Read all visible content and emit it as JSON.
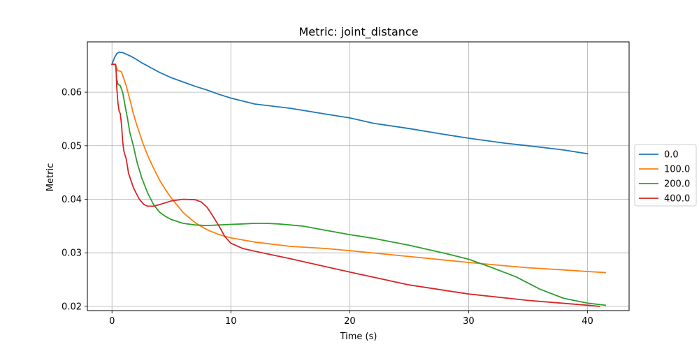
{
  "chart_data": {
    "type": "line",
    "title": "Metric: joint_distance",
    "xlabel": "Time (s)",
    "ylabel": "Metric",
    "xlim": [
      -2.07,
      43.5
    ],
    "ylim": [
      0.0192,
      0.0694
    ],
    "xticks": [
      0,
      10,
      20,
      30,
      40
    ],
    "xtick_labels": [
      "0",
      "10",
      "20",
      "30",
      "40"
    ],
    "yticks": [
      0.02,
      0.03,
      0.04,
      0.05,
      0.06
    ],
    "ytick_labels": [
      "0.02",
      "0.03",
      "0.04",
      "0.05",
      "0.06"
    ],
    "grid": true,
    "legend": "right, outside plot",
    "series": [
      {
        "name": "0.0",
        "color": "#1f77b4",
        "x": [
          0,
          0.2,
          0.4,
          0.6,
          0.9,
          1.2,
          1.6,
          2.0,
          2.5,
          3.0,
          4.0,
          5.0,
          6.0,
          7.0,
          8.0,
          9.0,
          10.0,
          12.0,
          15.0,
          18.0,
          20.0,
          22.0,
          25.0,
          28.0,
          30.0,
          33.0,
          35.0,
          38.0,
          40.0
        ],
        "y": [
          0.0652,
          0.0664,
          0.0672,
          0.0675,
          0.0674,
          0.0671,
          0.0667,
          0.0662,
          0.0655,
          0.0649,
          0.0637,
          0.0627,
          0.0619,
          0.0611,
          0.0604,
          0.0596,
          0.0589,
          0.0578,
          0.057,
          0.0559,
          0.0552,
          0.0542,
          0.0532,
          0.0521,
          0.0514,
          0.0505,
          0.05,
          0.0492,
          0.0485
        ]
      },
      {
        "name": "100.0",
        "color": "#ff7f0e",
        "x": [
          0,
          0.3,
          0.4,
          0.5,
          0.6,
          0.8,
          1.0,
          1.2,
          1.4,
          1.6,
          1.8,
          2.0,
          2.3,
          2.6,
          3.0,
          3.5,
          4.0,
          4.5,
          5.0,
          6.0,
          7.0,
          8.0,
          9.0,
          10.0,
          12.0,
          15.0,
          18.0,
          20.0,
          25.0,
          30.0,
          33.0,
          35.0,
          38.0,
          40.0,
          41.5
        ],
        "y": [
          0.0652,
          0.0652,
          0.0645,
          0.064,
          0.064,
          0.0638,
          0.0625,
          0.0612,
          0.0595,
          0.0578,
          0.056,
          0.0545,
          0.0525,
          0.0505,
          0.0482,
          0.0458,
          0.0436,
          0.0418,
          0.0402,
          0.0375,
          0.0356,
          0.0343,
          0.0334,
          0.0328,
          0.032,
          0.0312,
          0.0308,
          0.0304,
          0.0293,
          0.0282,
          0.0276,
          0.0272,
          0.0268,
          0.0265,
          0.0263
        ]
      },
      {
        "name": "200.0",
        "color": "#2ca02c",
        "x": [
          0,
          0.3,
          0.4,
          0.5,
          0.7,
          0.9,
          1.1,
          1.3,
          1.5,
          1.8,
          2.1,
          2.5,
          3.0,
          3.5,
          4.0,
          4.5,
          5.0,
          6.0,
          7.0,
          8.0,
          9.0,
          10.0,
          11.0,
          12.0,
          13.0,
          14.0,
          16.0,
          18.0,
          20.0,
          22.0,
          25.0,
          28.0,
          30.0,
          32.0,
          34.0,
          36.0,
          38.0,
          40.0,
          41.5
        ],
        "y": [
          0.0652,
          0.0652,
          0.0625,
          0.0615,
          0.0612,
          0.06,
          0.0575,
          0.0552,
          0.0525,
          0.05,
          0.047,
          0.044,
          0.0412,
          0.039,
          0.0376,
          0.0368,
          0.0362,
          0.0355,
          0.0352,
          0.0351,
          0.0352,
          0.0353,
          0.0354,
          0.0355,
          0.0355,
          0.0354,
          0.035,
          0.0342,
          0.0334,
          0.0327,
          0.0314,
          0.0299,
          0.0288,
          0.0272,
          0.0255,
          0.0232,
          0.0215,
          0.0206,
          0.0202
        ]
      },
      {
        "name": "400.0",
        "color": "#d62728",
        "x": [
          0,
          0.2,
          0.3,
          0.35,
          0.4,
          0.5,
          0.6,
          0.7,
          0.8,
          0.9,
          1.0,
          1.2,
          1.4,
          1.6,
          1.8,
          2.0,
          2.3,
          2.7,
          3.0,
          3.5,
          4.0,
          5.0,
          6.0,
          7.0,
          7.5,
          8.0,
          8.5,
          9.0,
          9.5,
          10.0,
          11.0,
          12.0,
          15.0,
          20.0,
          25.0,
          30.0,
          35.0,
          40.0,
          41.0
        ],
        "y": [
          0.0652,
          0.0652,
          0.0652,
          0.064,
          0.061,
          0.058,
          0.0565,
          0.056,
          0.054,
          0.0508,
          0.049,
          0.0475,
          0.0448,
          0.0435,
          0.0422,
          0.0413,
          0.04,
          0.039,
          0.0387,
          0.0387,
          0.039,
          0.0397,
          0.04,
          0.0399,
          0.0395,
          0.0385,
          0.0368,
          0.035,
          0.033,
          0.0318,
          0.0308,
          0.0303,
          0.0289,
          0.0264,
          0.024,
          0.0223,
          0.0211,
          0.0202,
          0.02
        ]
      }
    ]
  }
}
